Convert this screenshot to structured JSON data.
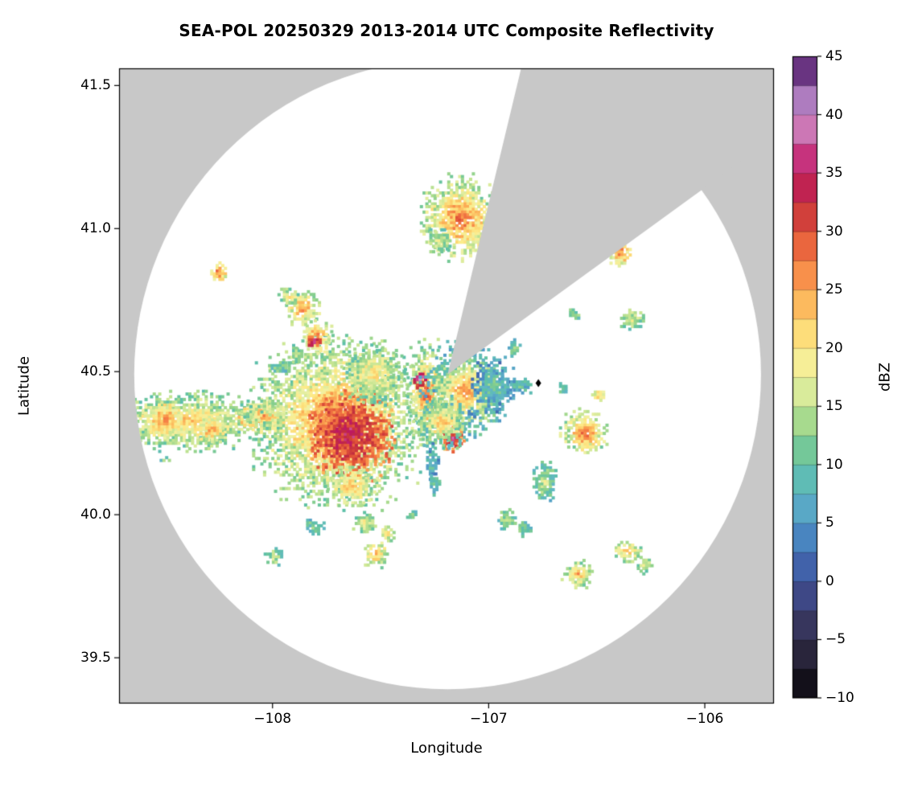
{
  "chart_data": {
    "type": "heatmap",
    "title": "SEA-POL 20250329 2013-2014 UTC Composite Reflectivity",
    "xlabel": "Longitude",
    "ylabel": "Latitude",
    "xlim": [
      -108.71,
      -105.68
    ],
    "ylim": [
      39.34,
      41.56
    ],
    "x_ticks": [
      {
        "value": -108,
        "label": "−108"
      },
      {
        "value": -107,
        "label": "−107"
      },
      {
        "value": -106,
        "label": "−106"
      }
    ],
    "y_ticks": [
      {
        "value": 41.5,
        "label": "41.5"
      },
      {
        "value": 41.0,
        "label": "41.0"
      },
      {
        "value": 40.5,
        "label": "40.5"
      },
      {
        "value": 40.0,
        "label": "40.0"
      },
      {
        "value": 39.5,
        "label": "39.5"
      }
    ],
    "plot_bg_outside_scan": "#c8c8c8",
    "scan_area_color": "#ffffff",
    "frame_color": "#000000",
    "radar": {
      "center_lon": -107.19,
      "center_lat": 40.49,
      "radius_deg_lon": 1.45,
      "radius_deg_lat": 1.1,
      "blocked_sector_azimuth_deg": [
        13.5,
        54
      ]
    },
    "marker": {
      "lon": -106.77,
      "lat": 40.46,
      "shape": "diamond",
      "color": "#000000"
    },
    "colorbar": {
      "label": "dBZ",
      "min": -10,
      "max": 45,
      "segment_step": 2.5,
      "ticks": [
        {
          "value": 45,
          "label": "45"
        },
        {
          "value": 40,
          "label": "40"
        },
        {
          "value": 35,
          "label": "35"
        },
        {
          "value": 30,
          "label": "30"
        },
        {
          "value": 25,
          "label": "25"
        },
        {
          "value": 20,
          "label": "20"
        },
        {
          "value": 15,
          "label": "15"
        },
        {
          "value": 10,
          "label": "10"
        },
        {
          "value": 5,
          "label": "5"
        },
        {
          "value": 0,
          "label": "0"
        },
        {
          "value": -5,
          "label": "−5"
        },
        {
          "value": -10,
          "label": "−10"
        }
      ],
      "stops": [
        {
          "dbz": -10,
          "color": "#050407"
        },
        {
          "dbz": -7.5,
          "color": "#211c2d"
        },
        {
          "dbz": -5,
          "color": "#312d49"
        },
        {
          "dbz": -2.5,
          "color": "#3c3f70"
        },
        {
          "dbz": 0,
          "color": "#40509c"
        },
        {
          "dbz": 2.5,
          "color": "#4273b8"
        },
        {
          "dbz": 5,
          "color": "#4f97c7"
        },
        {
          "dbz": 7.5,
          "color": "#62b8c4"
        },
        {
          "dbz": 10,
          "color": "#5cc0a6"
        },
        {
          "dbz": 12.5,
          "color": "#8bd08b"
        },
        {
          "dbz": 15,
          "color": "#c3e491"
        },
        {
          "dbz": 17.5,
          "color": "#eff1a5"
        },
        {
          "dbz": 20,
          "color": "#fdeb89"
        },
        {
          "dbz": 22.5,
          "color": "#fccf6b"
        },
        {
          "dbz": 25,
          "color": "#fba551"
        },
        {
          "dbz": 27.5,
          "color": "#f47b44"
        },
        {
          "dbz": 30,
          "color": "#e05138"
        },
        {
          "dbz": 32.5,
          "color": "#c22e3e"
        },
        {
          "dbz": 35,
          "color": "#bd1863"
        },
        {
          "dbz": 37.5,
          "color": "#cf4e97"
        },
        {
          "dbz": 40,
          "color": "#c9a0d2"
        },
        {
          "dbz": 42.5,
          "color": "#9257ab"
        },
        {
          "dbz": 45,
          "color": "#3f1157"
        }
      ]
    },
    "echoes": [
      {
        "name": "west-stripe",
        "lon": -108.4,
        "lat": 40.325,
        "rx": 0.3,
        "ry": 0.085,
        "core": 23,
        "edge": 12
      },
      {
        "name": "west-stripe-orange-1",
        "lon": -108.5,
        "lat": 40.33,
        "rx": 0.08,
        "ry": 0.05,
        "core": 27,
        "edge": 18
      },
      {
        "name": "west-stripe-orange-2",
        "lon": -108.28,
        "lat": 40.3,
        "rx": 0.06,
        "ry": 0.04,
        "core": 26,
        "edge": 17
      },
      {
        "name": "west-arm",
        "lon": -108.04,
        "lat": 40.34,
        "rx": 0.1,
        "ry": 0.05,
        "core": 26,
        "edge": 15
      },
      {
        "name": "west-teal-hole",
        "lon": -108.11,
        "lat": 40.345,
        "rx": 0.045,
        "ry": 0.035,
        "core": 6,
        "edge": 22
      },
      {
        "name": "main-storm",
        "lon": -107.7,
        "lat": 40.32,
        "rx": 0.33,
        "ry": 0.245,
        "core": 29,
        "edge": 13
      },
      {
        "name": "main-storm-core",
        "lon": -107.64,
        "lat": 40.28,
        "rx": 0.17,
        "ry": 0.13,
        "core": 35,
        "edge": 27
      },
      {
        "name": "main-storm-north",
        "lon": -107.53,
        "lat": 40.49,
        "rx": 0.13,
        "ry": 0.09,
        "core": 21,
        "edge": 12
      },
      {
        "name": "main-storm-south-tail",
        "lon": -107.63,
        "lat": 40.1,
        "rx": 0.1,
        "ry": 0.06,
        "core": 24,
        "edge": 14
      },
      {
        "name": "nw-cell-1",
        "lon": -107.86,
        "lat": 40.72,
        "rx": 0.07,
        "ry": 0.055,
        "core": 27,
        "edge": 14
      },
      {
        "name": "nw-cell-1b",
        "lon": -107.92,
        "lat": 40.76,
        "rx": 0.04,
        "ry": 0.03,
        "core": 20,
        "edge": 13
      },
      {
        "name": "nw-cell-2",
        "lon": -107.79,
        "lat": 40.625,
        "rx": 0.06,
        "ry": 0.05,
        "core": 27,
        "edge": 15
      },
      {
        "name": "nw-cell-2-purple",
        "lon": -107.81,
        "lat": 40.605,
        "rx": 0.026,
        "ry": 0.02,
        "core": 39,
        "edge": 29
      },
      {
        "name": "nw-cell-3",
        "lon": -107.89,
        "lat": 40.56,
        "rx": 0.03,
        "ry": 0.025,
        "core": 16,
        "edge": 11
      },
      {
        "name": "nw-red-dot",
        "lon": -108.25,
        "lat": 40.845,
        "rx": 0.035,
        "ry": 0.028,
        "core": 29,
        "edge": 18
      },
      {
        "name": "west-green-specks",
        "lon": -107.97,
        "lat": 40.515,
        "rx": 0.045,
        "ry": 0.02,
        "core": 13,
        "edge": 9
      },
      {
        "name": "north-storm",
        "lon": -107.13,
        "lat": 41.035,
        "rx": 0.155,
        "ry": 0.125,
        "core": 29,
        "edge": 14
      },
      {
        "name": "north-storm-tail",
        "lon": -107.23,
        "lat": 40.955,
        "rx": 0.05,
        "ry": 0.04,
        "core": 17,
        "edge": 12
      },
      {
        "name": "center-band",
        "lon": -107.285,
        "lat": 40.425,
        "rx": 0.08,
        "ry": 0.15,
        "core": 30,
        "edge": 12
      },
      {
        "name": "center-purple-spot",
        "lon": -107.315,
        "lat": 40.475,
        "rx": 0.032,
        "ry": 0.028,
        "core": 41,
        "edge": 30
      },
      {
        "name": "center-mix",
        "lon": -107.11,
        "lat": 40.43,
        "rx": 0.165,
        "ry": 0.14,
        "core": 27,
        "edge": 8
      },
      {
        "name": "center-teal-east",
        "lon": -106.975,
        "lat": 40.45,
        "rx": 0.09,
        "ry": 0.08,
        "core": 11,
        "edge": 5
      },
      {
        "name": "center-magenta-spot",
        "lon": -107.165,
        "lat": 40.265,
        "rx": 0.05,
        "ry": 0.04,
        "core": 37,
        "edge": 26
      },
      {
        "name": "center-blue-dot",
        "lon": -107.075,
        "lat": 40.355,
        "rx": 0.022,
        "ry": 0.02,
        "core": 1,
        "edge": 7
      },
      {
        "name": "center-south-mix",
        "lon": -107.21,
        "lat": 40.32,
        "rx": 0.1,
        "ry": 0.075,
        "core": 25,
        "edge": 10
      },
      {
        "name": "center-teal-s1",
        "lon": -107.26,
        "lat": 40.185,
        "rx": 0.028,
        "ry": 0.05,
        "core": 11,
        "edge": 6
      },
      {
        "name": "center-green-s2",
        "lon": -107.25,
        "lat": 40.105,
        "rx": 0.022,
        "ry": 0.032,
        "core": 13,
        "edge": 8
      },
      {
        "name": "ne-speck",
        "lon": -106.88,
        "lat": 40.58,
        "rx": 0.03,
        "ry": 0.025,
        "core": 12,
        "edge": 8
      },
      {
        "name": "east-specks",
        "lon": -106.85,
        "lat": 40.455,
        "rx": 0.045,
        "ry": 0.03,
        "core": 11,
        "edge": 7
      },
      {
        "name": "east-tiny",
        "lon": -106.655,
        "lat": 40.445,
        "rx": 0.02,
        "ry": 0.018,
        "core": 15,
        "edge": 10
      },
      {
        "name": "east-orange-dot",
        "lon": -106.485,
        "lat": 40.42,
        "rx": 0.027,
        "ry": 0.022,
        "core": 24,
        "edge": 15
      },
      {
        "name": "east-red-dot",
        "lon": -106.39,
        "lat": 40.915,
        "rx": 0.045,
        "ry": 0.04,
        "core": 29,
        "edge": 17
      },
      {
        "name": "east-yellow-spots",
        "lon": -106.335,
        "lat": 40.68,
        "rx": 0.05,
        "ry": 0.028,
        "core": 17,
        "edge": 12
      },
      {
        "name": "east-green-spot",
        "lon": -106.6,
        "lat": 40.7,
        "rx": 0.027,
        "ry": 0.02,
        "core": 14,
        "edge": 10
      },
      {
        "name": "se-orange-blob",
        "lon": -106.555,
        "lat": 40.285,
        "rx": 0.09,
        "ry": 0.068,
        "core": 29,
        "edge": 14
      },
      {
        "name": "se-green-blob",
        "lon": -106.74,
        "lat": 40.115,
        "rx": 0.05,
        "ry": 0.062,
        "core": 16,
        "edge": 9
      },
      {
        "name": "s-cell-1",
        "lon": -107.8,
        "lat": 39.955,
        "rx": 0.04,
        "ry": 0.028,
        "core": 15,
        "edge": 9
      },
      {
        "name": "s-cell-2",
        "lon": -107.575,
        "lat": 39.97,
        "rx": 0.05,
        "ry": 0.03,
        "core": 20,
        "edge": 12
      },
      {
        "name": "s-cell-3",
        "lon": -107.47,
        "lat": 39.935,
        "rx": 0.035,
        "ry": 0.025,
        "core": 22,
        "edge": 14
      },
      {
        "name": "s-cell-4",
        "lon": -107.52,
        "lat": 39.86,
        "rx": 0.05,
        "ry": 0.04,
        "core": 26,
        "edge": 14
      },
      {
        "name": "s-cell-5",
        "lon": -107.99,
        "lat": 39.85,
        "rx": 0.035,
        "ry": 0.025,
        "core": 17,
        "edge": 11
      },
      {
        "name": "s-cell-6",
        "lon": -107.35,
        "lat": 39.997,
        "rx": 0.02,
        "ry": 0.018,
        "core": 13,
        "edge": 9
      },
      {
        "name": "s-cell-7",
        "lon": -106.915,
        "lat": 39.98,
        "rx": 0.04,
        "ry": 0.03,
        "core": 16,
        "edge": 10
      },
      {
        "name": "s-cell-8",
        "lon": -106.83,
        "lat": 39.95,
        "rx": 0.03,
        "ry": 0.025,
        "core": 14,
        "edge": 9
      },
      {
        "name": "s-cell-9",
        "lon": -106.585,
        "lat": 39.79,
        "rx": 0.06,
        "ry": 0.04,
        "core": 25,
        "edge": 13
      },
      {
        "name": "s-cell-10",
        "lon": -106.36,
        "lat": 39.87,
        "rx": 0.06,
        "ry": 0.034,
        "core": 24,
        "edge": 13
      },
      {
        "name": "s-cell-11",
        "lon": -106.28,
        "lat": 39.825,
        "rx": 0.032,
        "ry": 0.028,
        "core": 20,
        "edge": 12
      },
      {
        "name": "sw-tiny",
        "lon": -108.49,
        "lat": 40.19,
        "rx": 0.02,
        "ry": 0.015,
        "core": 14,
        "edge": 10
      }
    ]
  }
}
